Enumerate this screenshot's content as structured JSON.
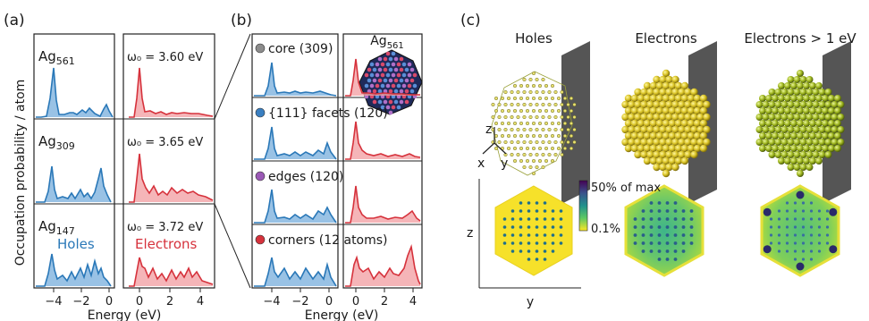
{
  "panels": {
    "a": {
      "label": "(a)",
      "ylabel": "Occupation probability / atom",
      "xlabel": "Energy (eV)",
      "xticks_holes": [
        "−4",
        "−2",
        "0"
      ],
      "xticks_elec": [
        "0",
        "2",
        "4"
      ],
      "legend_holes": "Holes",
      "legend_electrons": "Electrons",
      "rows": [
        {
          "name": "Ag",
          "sub": "561",
          "omega": "ω₀ = 3.60 eV"
        },
        {
          "name": "Ag",
          "sub": "309",
          "omega": "ω₀ = 3.65 eV"
        },
        {
          "name": "Ag",
          "sub": "147",
          "omega": "ω₀ = 3.72 eV"
        }
      ]
    },
    "b": {
      "label": "(b)",
      "xlabel": "Energy (eV)",
      "xticks_holes": [
        "−4",
        "−2",
        "0"
      ],
      "xticks_elec": [
        "0",
        "2",
        "4"
      ],
      "cluster_title": "Ag",
      "cluster_sub": "561",
      "rows": [
        {
          "label": "core (309)",
          "color": "#8c8c8c"
        },
        {
          "label": "{111} facets (120)",
          "color": "#3a7fc1"
        },
        {
          "label": "edges (120)",
          "color": "#9b59b6"
        },
        {
          "label": "corners (12 atoms)",
          "color": "#d6323c"
        }
      ]
    },
    "c": {
      "label": "(c)",
      "titles": [
        "Holes",
        "Electrons",
        "Electrons > 1 eV"
      ],
      "axes": {
        "z": "z",
        "x": "x",
        "y": "y"
      },
      "colorbar_max": "50% of max",
      "colorbar_min": "0.1%",
      "map_ylabel": "z",
      "map_xlabel": "y"
    }
  },
  "chart_data": [
    {
      "type": "area",
      "panel": "a",
      "xlabel": "Energy (eV)",
      "ylabel": "Occupation probability / atom",
      "holes_xlim": [
        -5,
        0.5
      ],
      "electrons_xlim": [
        -0.5,
        5
      ],
      "series": [
        {
          "name": "Holes",
          "system": "Ag561",
          "x": [
            -4.0,
            -3.6,
            -2.3,
            -1.6,
            -1.1,
            -0.3
          ],
          "y": [
            0.95,
            0.18,
            0.1,
            0.14,
            0.12,
            0.3
          ]
        },
        {
          "name": "Electrons",
          "system": "Ag561",
          "x": [
            0.1,
            0.9,
            1.5,
            2.4,
            3.0,
            3.6
          ],
          "y": [
            0.95,
            0.15,
            0.12,
            0.1,
            0.14,
            0.1
          ]
        },
        {
          "name": "Holes",
          "system": "Ag309",
          "x": [
            -4.0,
            -3.5,
            -2.4,
            -1.7,
            -1.2,
            -0.4,
            0.0
          ],
          "y": [
            0.95,
            0.22,
            0.18,
            0.3,
            0.3,
            0.6,
            0.25
          ]
        },
        {
          "name": "Electrons",
          "system": "Ag309",
          "x": [
            0.1,
            0.4,
            1.0,
            1.7,
            2.4,
            3.0,
            3.6
          ],
          "y": [
            0.95,
            0.35,
            0.25,
            0.35,
            0.25,
            0.3,
            0.2
          ]
        },
        {
          "name": "Holes",
          "system": "Ag147",
          "x": [
            -4.0,
            -3.5,
            -2.5,
            -1.6,
            -1.1,
            -0.7,
            0.0
          ],
          "y": [
            0.95,
            0.4,
            0.3,
            0.4,
            0.55,
            0.7,
            0.3
          ]
        },
        {
          "name": "Electrons",
          "system": "Ag147",
          "x": [
            0.0,
            0.4,
            1.2,
            2.0,
            2.7,
            3.1,
            3.5
          ],
          "y": [
            0.9,
            0.7,
            0.4,
            0.55,
            0.6,
            0.65,
            0.5
          ]
        }
      ]
    },
    {
      "type": "area",
      "panel": "b",
      "xlabel": "Energy (eV)",
      "holes_xlim": [
        -5,
        0.5
      ],
      "electrons_xlim": [
        -0.5,
        4.5
      ],
      "series": [
        {
          "name": "core (309)",
          "holes_x": [
            -4.0,
            -3.6,
            -2.2,
            -1.5,
            -0.6
          ],
          "holes_y": [
            0.95,
            0.2,
            0.12,
            0.14,
            0.22
          ],
          "electrons_x": [
            0.1,
            0.9,
            1.6,
            2.5,
            3.4
          ],
          "electrons_y": [
            0.95,
            0.12,
            0.1,
            0.1,
            0.1
          ]
        },
        {
          "name": "{111} facets (120)",
          "holes_x": [
            -4.0,
            -3.5,
            -2.5,
            -1.6,
            -0.8,
            -0.2
          ],
          "holes_y": [
            0.95,
            0.22,
            0.15,
            0.2,
            0.22,
            0.3
          ],
          "electrons_x": [
            0.1,
            0.5,
            1.4,
            2.2,
            3.0,
            3.6
          ],
          "electrons_y": [
            0.95,
            0.25,
            0.15,
            0.12,
            0.15,
            0.12
          ]
        },
        {
          "name": "edges (120)",
          "holes_x": [
            -4.0,
            -3.5,
            -2.6,
            -1.6,
            -0.6,
            -0.1
          ],
          "holes_y": [
            0.95,
            0.25,
            0.15,
            0.2,
            0.35,
            0.3
          ],
          "electrons_x": [
            0.1,
            0.5,
            1.3,
            2.1,
            2.9,
            3.6
          ],
          "electrons_y": [
            0.9,
            0.25,
            0.18,
            0.15,
            0.18,
            0.3
          ]
        },
        {
          "name": "corners (12 atoms)",
          "holes_x": [
            -4.0,
            -3.6,
            -2.6,
            -1.8,
            -0.8,
            -0.1
          ],
          "holes_y": [
            0.8,
            0.4,
            0.3,
            0.45,
            0.4,
            0.55
          ],
          "electrons_x": [
            0.0,
            0.4,
            1.0,
            2.0,
            2.5,
            3.6
          ],
          "electrons_y": [
            0.45,
            0.3,
            0.5,
            0.35,
            0.5,
            0.95
          ]
        }
      ]
    }
  ]
}
